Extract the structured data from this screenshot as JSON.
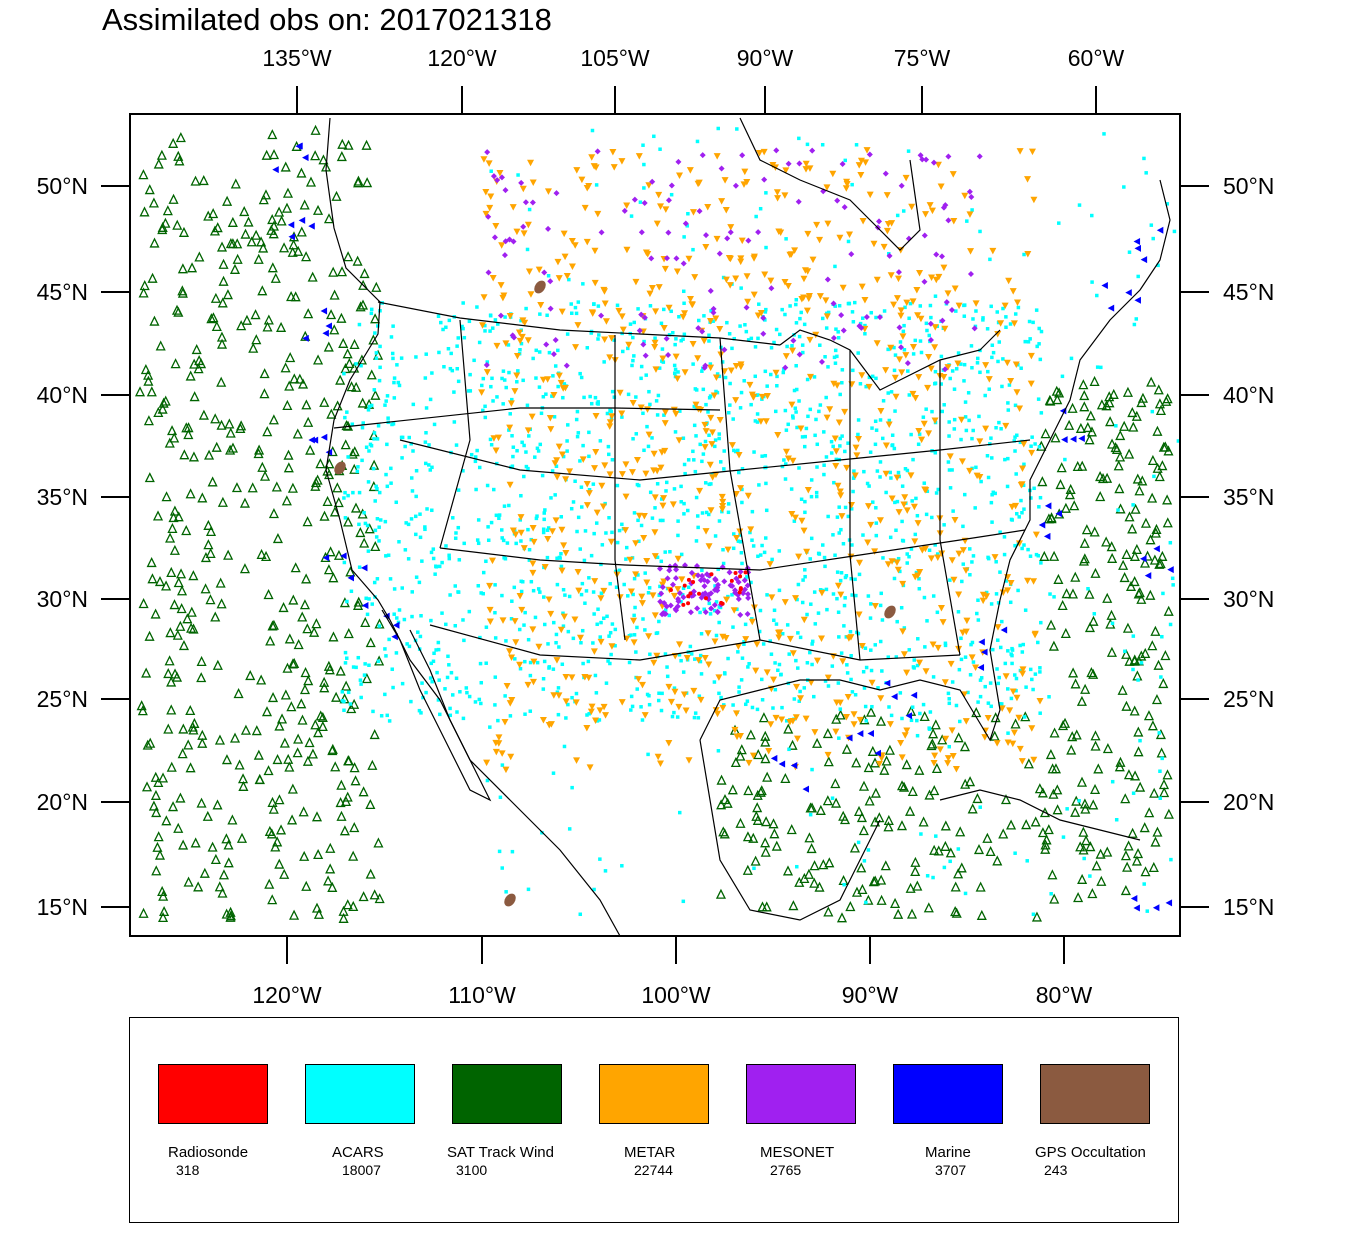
{
  "title": "Assimilated obs on: 2017021318",
  "axes": {
    "top_lon_labels": [
      "135°W",
      "120°W",
      "105°W",
      "90°W",
      "75°W",
      "60°W"
    ],
    "bottom_lon_labels": [
      "120°W",
      "110°W",
      "100°W",
      "90°W",
      "80°W"
    ],
    "lat_labels": [
      "50°N",
      "45°N",
      "40°N",
      "35°N",
      "30°N",
      "25°N",
      "20°N",
      "15°N"
    ]
  },
  "legend": [
    {
      "label": "Radiosonde",
      "count": "318",
      "color": "#ff0000"
    },
    {
      "label": "ACARS",
      "count": "18007",
      "color": "#00ffff"
    },
    {
      "label": "SAT Track Wind",
      "count": "3100",
      "color": "#006400"
    },
    {
      "label": "METAR",
      "count": "22744",
      "color": "#ffa500"
    },
    {
      "label": "MESONET",
      "count": "2765",
      "color": "#a020f0"
    },
    {
      "label": "Marine",
      "count": "3707",
      "color": "#0000ff"
    },
    {
      "label": "GPS Occultation",
      "count": "243",
      "color": "#8b5a40"
    }
  ]
}
